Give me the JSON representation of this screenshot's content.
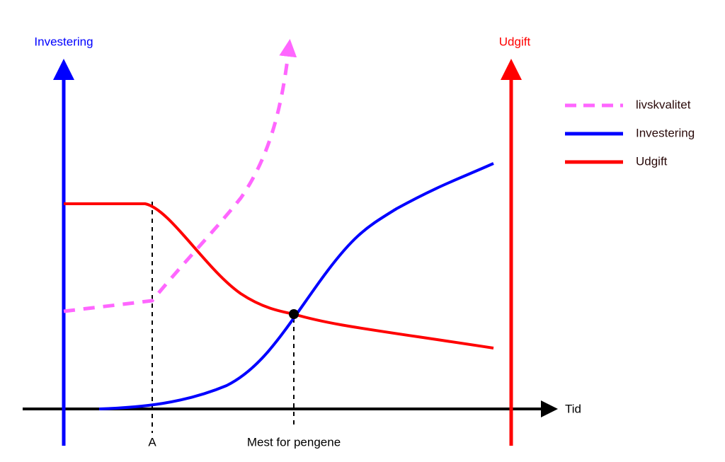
{
  "axes": {
    "left": "Investering",
    "right": "Udgift",
    "x": "Tid"
  },
  "markers": [
    "A",
    "Mest for pengene"
  ],
  "legend": [
    "livskvalitet",
    "Investering",
    "Udgift"
  ]
}
